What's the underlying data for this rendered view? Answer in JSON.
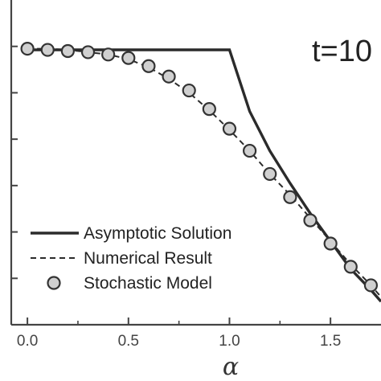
{
  "chart_data": {
    "type": "line",
    "title": "",
    "xlabel": "α",
    "ylabel": "",
    "xlim": [
      -0.08,
      1.75
    ],
    "ylim": [
      -0.2,
      1.2
    ],
    "x_ticks": [
      0.0,
      0.5,
      1.0,
      1.5
    ],
    "x_tick_labels": [
      "0.0",
      "0.5",
      "1.0",
      "1.5"
    ],
    "y_ticks": [
      0.0,
      0.2,
      0.4,
      0.6,
      0.8,
      1.0
    ],
    "annotation": "t=10",
    "legend_position": "bottom-left",
    "grid": false,
    "series": [
      {
        "name": "Asymptotic Solution",
        "style": "solid",
        "color": "#2b2b2b",
        "x": [
          0.0,
          1.0,
          1.1,
          1.2,
          1.3,
          1.4,
          1.5,
          1.6,
          1.7,
          1.75
        ],
        "y": [
          0.985,
          0.985,
          0.72,
          0.55,
          0.41,
          0.28,
          0.16,
          0.04,
          -0.05,
          -0.1
        ]
      },
      {
        "name": "Numerical Result",
        "style": "dashed",
        "color": "#2b2b2b",
        "x": [
          0.0,
          0.1,
          0.2,
          0.3,
          0.4,
          0.5,
          0.6,
          0.7,
          0.8,
          0.9,
          1.0,
          1.1,
          1.2,
          1.3,
          1.4,
          1.5,
          1.6,
          1.7,
          1.75
        ],
        "y": [
          0.99,
          0.99,
          0.985,
          0.975,
          0.965,
          0.945,
          0.91,
          0.86,
          0.8,
          0.725,
          0.64,
          0.55,
          0.45,
          0.36,
          0.26,
          0.16,
          0.06,
          -0.03,
          -0.08
        ]
      },
      {
        "name": "Stochastic Model",
        "style": "markers",
        "color": "#d0d0d0",
        "x": [
          0.0,
          0.1,
          0.2,
          0.3,
          0.4,
          0.5,
          0.6,
          0.7,
          0.8,
          0.9,
          1.0,
          1.1,
          1.2,
          1.3,
          1.4,
          1.5,
          1.6,
          1.7
        ],
        "y": [
          0.99,
          0.985,
          0.98,
          0.975,
          0.965,
          0.95,
          0.915,
          0.87,
          0.81,
          0.73,
          0.645,
          0.55,
          0.45,
          0.35,
          0.25,
          0.15,
          0.05,
          -0.03
        ]
      }
    ]
  }
}
